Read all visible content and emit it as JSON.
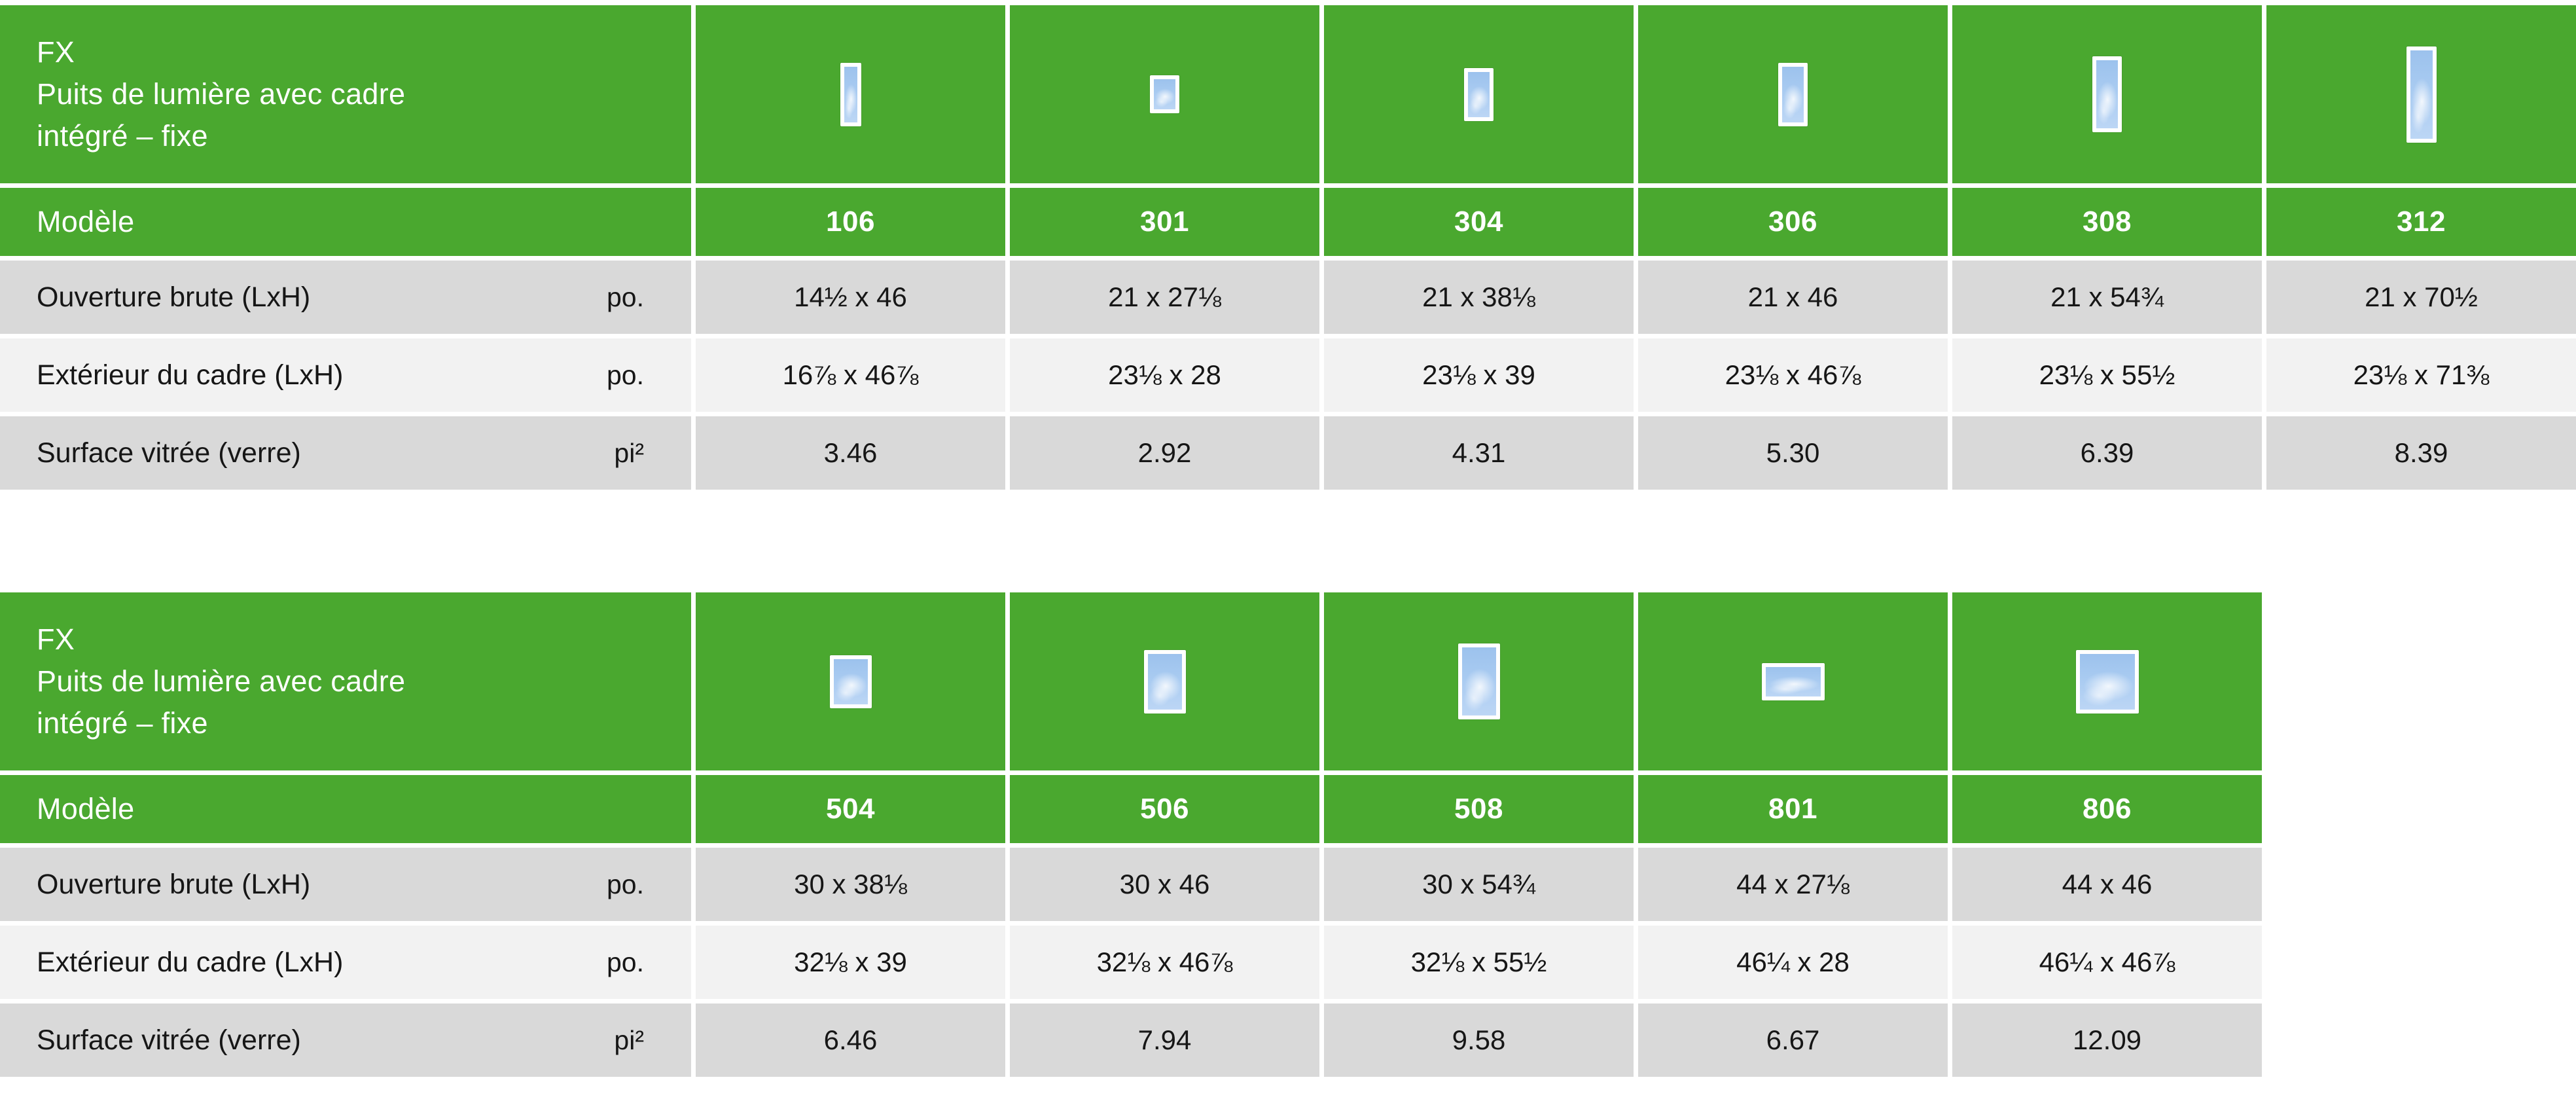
{
  "colors": {
    "green": "#4aa82f",
    "row-dark": "#d9d9d9",
    "row-light": "#f2f2f2",
    "glass-blue": "#a9cbf1"
  },
  "tables": [
    {
      "title_lines": [
        "FX",
        "Puits de lumière avec cadre",
        "intégré – fixe"
      ],
      "model_row_label": "Modèle",
      "models": [
        {
          "label": "106",
          "icon_name": "skylight-window-icon",
          "icon": {
            "w": 32,
            "h": 97
          }
        },
        {
          "label": "301",
          "icon_name": "skylight-window-icon",
          "icon": {
            "w": 45,
            "h": 58
          }
        },
        {
          "label": "304",
          "icon_name": "skylight-window-icon",
          "icon": {
            "w": 45,
            "h": 81
          }
        },
        {
          "label": "306",
          "icon_name": "skylight-window-icon",
          "icon": {
            "w": 45,
            "h": 97
          }
        },
        {
          "label": "308",
          "icon_name": "skylight-window-icon",
          "icon": {
            "w": 45,
            "h": 116
          }
        },
        {
          "label": "312",
          "icon_name": "skylight-window-icon",
          "icon": {
            "w": 46,
            "h": 147
          }
        }
      ],
      "rows": [
        {
          "label": "Ouverture brute (LxH)",
          "unit": "po.",
          "values": [
            "14½ x 46",
            "21 x 27⅛",
            "21 x 38⅛",
            "21 x 46",
            "21 x 54¾",
            "21 x 70½"
          ]
        },
        {
          "label": "Extérieur du cadre (LxH)",
          "unit": "po.",
          "values": [
            "16⅞ x 46⅞",
            "23⅛ x 28",
            "23⅛ x 39",
            "23⅛ x 46⅞",
            "23⅛ x 55½",
            "23⅛ x 71⅜"
          ]
        },
        {
          "label": "Surface vitrée (verre)",
          "unit": "pi²",
          "values": [
            "3.46",
            "2.92",
            "4.31",
            "5.30",
            "6.39",
            "8.39"
          ]
        }
      ]
    },
    {
      "title_lines": [
        "FX",
        "Puits de lumière avec cadre",
        "intégré – fixe"
      ],
      "model_row_label": "Modèle",
      "models": [
        {
          "label": "504",
          "icon_name": "skylight-window-icon",
          "icon": {
            "w": 64,
            "h": 81
          }
        },
        {
          "label": "506",
          "icon_name": "skylight-window-icon",
          "icon": {
            "w": 64,
            "h": 97
          }
        },
        {
          "label": "508",
          "icon_name": "skylight-window-icon",
          "icon": {
            "w": 64,
            "h": 116
          }
        },
        {
          "label": "801",
          "icon_name": "skylight-window-icon",
          "icon": {
            "w": 96,
            "h": 57
          }
        },
        {
          "label": "806",
          "icon_name": "skylight-window-icon",
          "icon": {
            "w": 96,
            "h": 97
          }
        }
      ],
      "rows": [
        {
          "label": "Ouverture brute (LxH)",
          "unit": "po.",
          "values": [
            "30 x 38⅛",
            "30 x 46",
            "30 x 54¾",
            "44 x 27⅛",
            "44 x 46"
          ]
        },
        {
          "label": "Extérieur du cadre (LxH)",
          "unit": "po.",
          "values": [
            "32⅛ x 39",
            "32⅛ x 46⅞",
            "32⅛ x 55½",
            "46¼ x 28",
            "46¼ x 46⅞"
          ]
        },
        {
          "label": "Surface vitrée (verre)",
          "unit": "pi²",
          "values": [
            "6.46",
            "7.94",
            "9.58",
            "6.67",
            "12.09"
          ]
        }
      ]
    }
  ]
}
